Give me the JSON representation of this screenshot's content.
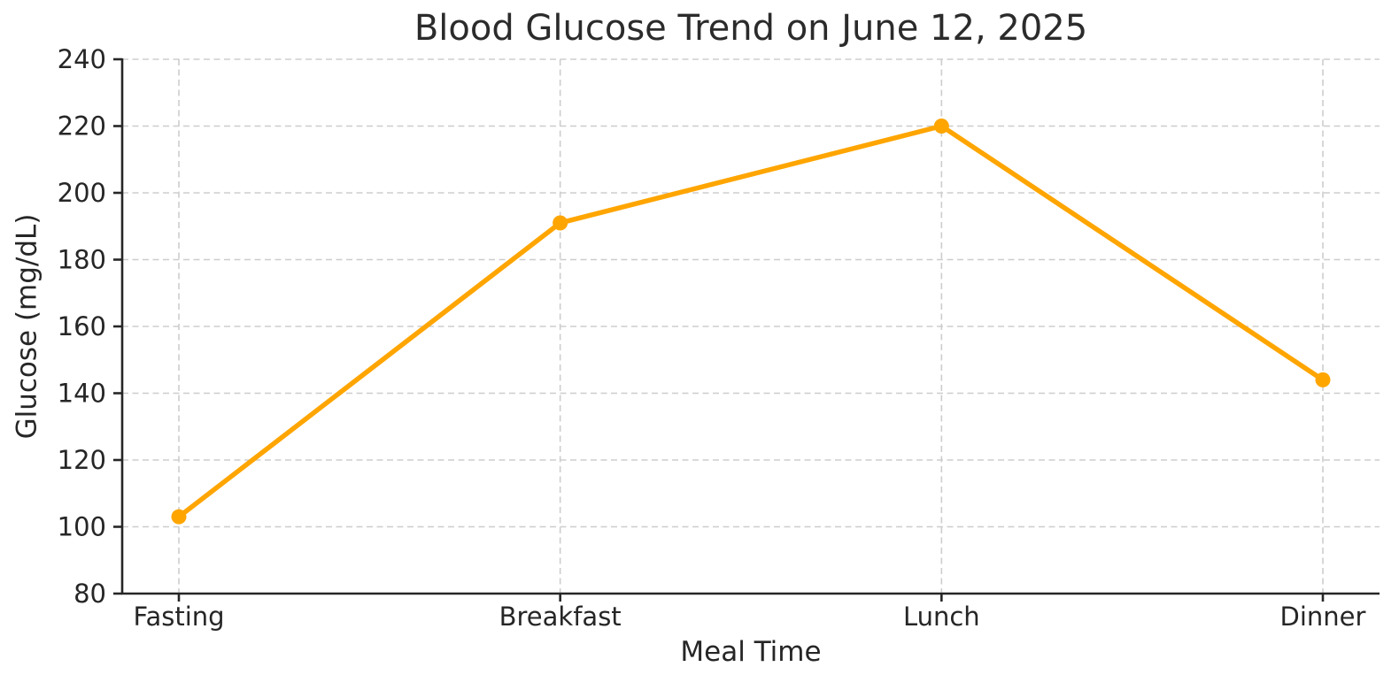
{
  "chart_data": {
    "type": "line",
    "title": "Blood Glucose Trend on June 12, 2025",
    "xlabel": "Meal Time",
    "ylabel": "Glucose (mg/dL)",
    "categories": [
      "Fasting",
      "Breakfast",
      "Lunch",
      "Dinner"
    ],
    "series": [
      {
        "name": "Glucose",
        "values": [
          103,
          191,
          220,
          144
        ]
      }
    ],
    "ylim": [
      80,
      240
    ],
    "yticks": [
      80,
      100,
      120,
      140,
      160,
      180,
      200,
      220,
      240
    ],
    "grid": true,
    "grid_style": "dashed",
    "legend": "none",
    "colors": {
      "line": "#FFA500",
      "marker": "#FFA500",
      "grid": "#CDCDCD",
      "axis": "#262626",
      "text": "#262626",
      "background": "#FFFFFF"
    }
  }
}
